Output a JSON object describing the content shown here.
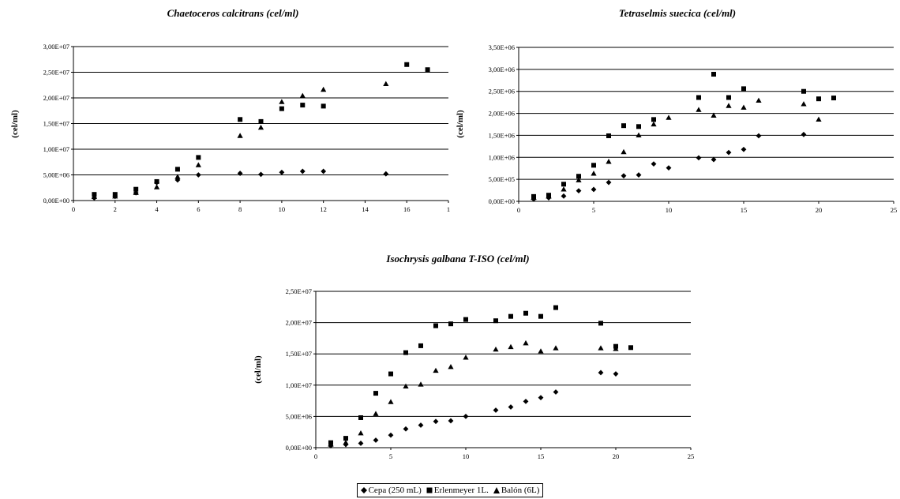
{
  "chart_data": [
    {
      "type": "scatter",
      "title": "Chaetoceros calcitrans (cel/ml)",
      "ylabel": "(cel/ml)",
      "xlabel": "",
      "xlim": [
        0,
        18
      ],
      "ylim": [
        0,
        30000000
      ],
      "grid": "horizontal",
      "x_tick_labels": [
        "0",
        "2",
        "4",
        "6",
        "8",
        "10",
        "12",
        "14",
        "16",
        "1"
      ],
      "y_tick_labels": [
        "0,00E+00",
        "5,00E+06",
        "1,00E+07",
        "1,50E+07",
        "2,00E+07",
        "2,50E+07",
        "3,00E+07"
      ],
      "series": [
        {
          "name": "Cepa (250 mL)",
          "marker": "diamond",
          "points": [
            [
              1,
              500000
            ],
            [
              2,
              800000
            ],
            [
              3,
              1500000
            ],
            [
              4,
              3500000
            ],
            [
              5,
              4000000
            ],
            [
              6,
              5000000
            ],
            [
              8,
              5300000
            ],
            [
              9,
              5100000
            ],
            [
              10,
              5500000
            ],
            [
              11,
              5700000
            ],
            [
              12,
              5700000
            ],
            [
              15,
              5200000
            ]
          ]
        },
        {
          "name": "Erlenmeyer 1L.",
          "marker": "square",
          "points": [
            [
              1,
              1200000
            ],
            [
              2,
              1200000
            ],
            [
              3,
              2200000
            ],
            [
              4,
              3700000
            ],
            [
              5,
              6100000
            ],
            [
              6,
              8400000
            ],
            [
              8,
              15800000
            ],
            [
              9,
              15400000
            ],
            [
              10,
              17900000
            ],
            [
              11,
              18600000
            ],
            [
              12,
              18400000
            ],
            [
              16,
              26500000
            ],
            [
              17,
              25500000
            ]
          ]
        },
        {
          "name": "Balón (6L)",
          "marker": "triangle",
          "points": [
            [
              1,
              700000
            ],
            [
              2,
              800000
            ],
            [
              3,
              1500000
            ],
            [
              4,
              2600000
            ],
            [
              5,
              4600000
            ],
            [
              6,
              6900000
            ],
            [
              8,
              12600000
            ],
            [
              9,
              14200000
            ],
            [
              10,
              19200000
            ],
            [
              11,
              20400000
            ],
            [
              12,
              21600000
            ],
            [
              15,
              22700000
            ]
          ]
        }
      ]
    },
    {
      "type": "scatter",
      "title": "Tetraselmis suecica (cel/ml)",
      "ylabel": "(cel/ml)",
      "xlabel": "",
      "xlim": [
        0,
        25
      ],
      "ylim": [
        0,
        3500000
      ],
      "grid": "horizontal",
      "x_tick_labels": [
        "0",
        "5",
        "10",
        "15",
        "20",
        "25"
      ],
      "y_tick_labels": [
        "0,00E+00",
        "5,00E+05",
        "1,00E+06",
        "1,50E+06",
        "2,00E+06",
        "2,50E+06",
        "3,00E+06",
        "3,50E+06"
      ],
      "series": [
        {
          "name": "Cepa (250 mL)",
          "marker": "diamond",
          "points": [
            [
              1,
              50000
            ],
            [
              2,
              80000
            ],
            [
              3,
              120000
            ],
            [
              4,
              240000
            ],
            [
              5,
              270000
            ],
            [
              6,
              430000
            ],
            [
              7,
              580000
            ],
            [
              8,
              600000
            ],
            [
              9,
              850000
            ],
            [
              10,
              760000
            ],
            [
              12,
              990000
            ],
            [
              13,
              950000
            ],
            [
              14,
              1110000
            ],
            [
              15,
              1180000
            ],
            [
              16,
              1490000
            ],
            [
              19,
              1520000
            ]
          ]
        },
        {
          "name": "Erlenmeyer 1L.",
          "marker": "square",
          "points": [
            [
              1,
              110000
            ],
            [
              2,
              140000
            ],
            [
              3,
              390000
            ],
            [
              4,
              570000
            ],
            [
              5,
              820000
            ],
            [
              6,
              1490000
            ],
            [
              7,
              1720000
            ],
            [
              8,
              1700000
            ],
            [
              9,
              1860000
            ],
            [
              12,
              2360000
            ],
            [
              13,
              2890000
            ],
            [
              14,
              2360000
            ],
            [
              15,
              2560000
            ],
            [
              19,
              2500000
            ],
            [
              20,
              2330000
            ],
            [
              21,
              2350000
            ]
          ]
        },
        {
          "name": "Balón (6L)",
          "marker": "triangle",
          "points": [
            [
              1,
              80000
            ],
            [
              2,
              110000
            ],
            [
              3,
              270000
            ],
            [
              4,
              480000
            ],
            [
              5,
              630000
            ],
            [
              6,
              900000
            ],
            [
              7,
              1120000
            ],
            [
              8,
              1500000
            ],
            [
              9,
              1750000
            ],
            [
              10,
              1900000
            ],
            [
              12,
              2080000
            ],
            [
              13,
              1950000
            ],
            [
              14,
              2170000
            ],
            [
              15,
              2130000
            ],
            [
              16,
              2290000
            ],
            [
              19,
              2210000
            ],
            [
              20,
              1860000
            ]
          ]
        }
      ]
    },
    {
      "type": "scatter",
      "title": "Isochrysis galbana T-ISO (cel/ml)",
      "ylabel": "(cel/ml)",
      "xlabel": "",
      "xlim": [
        0,
        25
      ],
      "ylim": [
        0,
        25000000
      ],
      "grid": "horizontal",
      "x_tick_labels": [
        "0",
        "5",
        "10",
        "15",
        "20",
        "25"
      ],
      "y_tick_labels": [
        "0,00E+00",
        "5,00E+06",
        "1,00E+07",
        "1,50E+07",
        "2,00E+07",
        "2,50E+07"
      ],
      "series": [
        {
          "name": "Cepa (250 mL)",
          "marker": "diamond",
          "points": [
            [
              1,
              300000
            ],
            [
              2,
              500000
            ],
            [
              3,
              700000
            ],
            [
              4,
              1200000
            ],
            [
              5,
              2000000
            ],
            [
              6,
              3000000
            ],
            [
              7,
              3600000
            ],
            [
              8,
              4200000
            ],
            [
              9,
              4300000
            ],
            [
              10,
              5000000
            ],
            [
              12,
              6000000
            ],
            [
              13,
              6500000
            ],
            [
              14,
              7400000
            ],
            [
              15,
              8000000
            ],
            [
              16,
              8900000
            ],
            [
              19,
              12000000
            ],
            [
              20,
              11800000
            ]
          ]
        },
        {
          "name": "Erlenmeyer 1L.",
          "marker": "square",
          "points": [
            [
              1,
              800000
            ],
            [
              2,
              1500000
            ],
            [
              3,
              4800000
            ],
            [
              4,
              8700000
            ],
            [
              5,
              11800000
            ],
            [
              6,
              15200000
            ],
            [
              7,
              16300000
            ],
            [
              8,
              19500000
            ],
            [
              9,
              19800000
            ],
            [
              10,
              20500000
            ],
            [
              12,
              20300000
            ],
            [
              13,
              21000000
            ],
            [
              14,
              21500000
            ],
            [
              15,
              21000000
            ],
            [
              16,
              22400000
            ],
            [
              19,
              19900000
            ],
            [
              20,
              16200000
            ],
            [
              21,
              16000000
            ]
          ]
        },
        {
          "name": "Balón (6L)",
          "marker": "triangle",
          "points": [
            [
              1,
              500000
            ],
            [
              2,
              800000
            ],
            [
              3,
              2300000
            ],
            [
              4,
              5400000
            ],
            [
              5,
              7300000
            ],
            [
              6,
              9800000
            ],
            [
              7,
              10100000
            ],
            [
              8,
              12300000
            ],
            [
              9,
              12900000
            ],
            [
              10,
              14400000
            ],
            [
              12,
              15700000
            ],
            [
              13,
              16100000
            ],
            [
              14,
              16700000
            ],
            [
              15,
              15400000
            ],
            [
              16,
              15900000
            ],
            [
              19,
              15900000
            ],
            [
              20,
              15800000
            ]
          ]
        }
      ]
    }
  ],
  "legend": {
    "items": [
      {
        "label": "Cepa (250 mL)",
        "marker": "diamond"
      },
      {
        "label": "Erlenmeyer 1L.",
        "marker": "square"
      },
      {
        "label": "Balón (6L)",
        "marker": "triangle"
      }
    ]
  }
}
